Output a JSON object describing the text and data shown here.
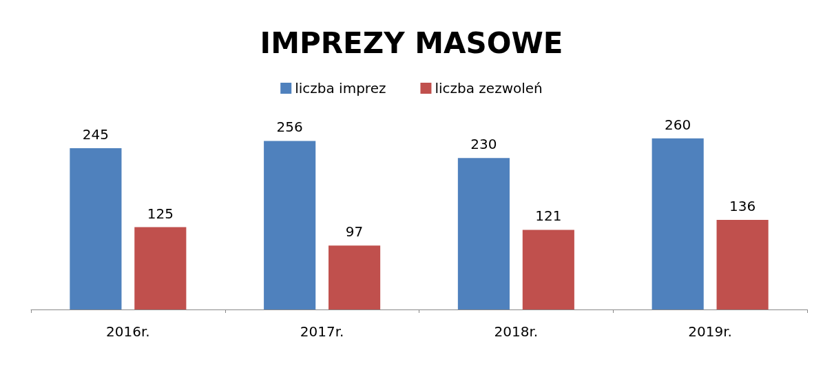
{
  "chart_data": {
    "type": "bar",
    "title": "IMPREZY MASOWE",
    "categories": [
      "2016r.",
      "2017r.",
      "2018r.",
      "2019r."
    ],
    "series": [
      {
        "name": "liczba imprez",
        "color": "#4f81bd",
        "values": [
          245,
          256,
          230,
          260
        ]
      },
      {
        "name": "liczba zezwoleń",
        "color": "#c0504d",
        "values": [
          125,
          97,
          121,
          136
        ]
      }
    ],
    "data_labels": true,
    "grid": false,
    "legend": "top"
  }
}
